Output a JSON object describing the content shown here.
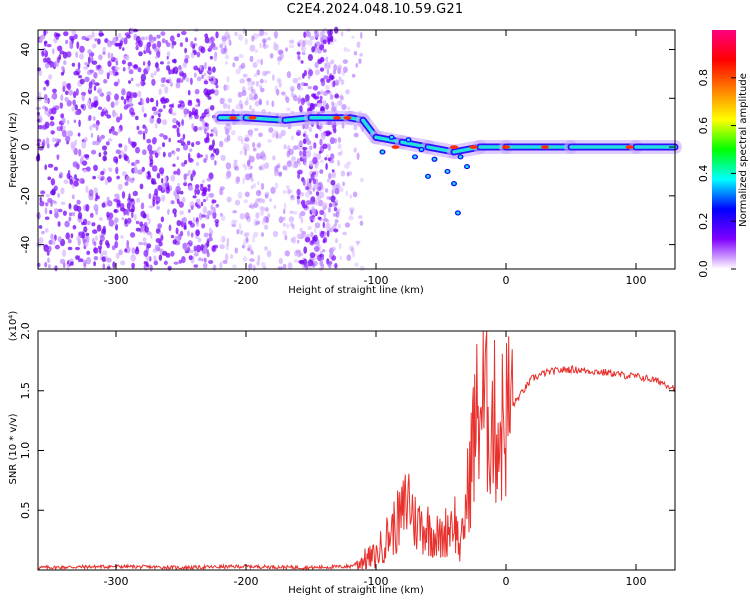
{
  "title": "C2E4.2024.048.10.59.G21",
  "chart_data": [
    {
      "type": "heatmap",
      "xlabel": "Height of straight line (km)",
      "ylabel": "Frequency (Hz)",
      "xlim": [
        -360,
        130
      ],
      "ylim": [
        -50,
        48
      ],
      "xticks": [
        -300,
        -200,
        -100,
        0,
        100
      ],
      "yticks": [
        -40,
        -20,
        0,
        20,
        40
      ],
      "colorbar": {
        "label": "Normalized spectral amplitude",
        "range": [
          0,
          1
        ],
        "ticks": [
          "0.0",
          "0.2",
          "0.4",
          "0.6",
          "0.8"
        ],
        "colors": [
          "#ffffff",
          "#8000ff",
          "#0000ff",
          "#00ffff",
          "#00ff00",
          "#ffff00",
          "#ff8000",
          "#ff0000",
          "#ff0080"
        ]
      },
      "signal_track": [
        {
          "x": -220,
          "y": 12
        },
        {
          "x": -200,
          "y": 12
        },
        {
          "x": -170,
          "y": 11
        },
        {
          "x": -150,
          "y": 12
        },
        {
          "x": -120,
          "y": 12
        },
        {
          "x": -110,
          "y": 11
        },
        {
          "x": -100,
          "y": 4
        },
        {
          "x": -80,
          "y": 2
        },
        {
          "x": -60,
          "y": 0
        },
        {
          "x": -40,
          "y": -2
        },
        {
          "x": -20,
          "y": 0
        },
        {
          "x": 0,
          "y": 0
        },
        {
          "x": 50,
          "y": 0
        },
        {
          "x": 100,
          "y": 0
        },
        {
          "x": 130,
          "y": 0
        }
      ]
    },
    {
      "type": "line",
      "xlabel": "Height of straight line (km)",
      "ylabel": "SNR (10 * v/v)",
      "y_multiplier": "(x10⁴)",
      "xlim": [
        -360,
        130
      ],
      "ylim": [
        0,
        2.0
      ],
      "xticks": [
        -300,
        -200,
        -100,
        0,
        100
      ],
      "yticks": [
        "0.5",
        "1.0",
        "1.5",
        "2.0"
      ],
      "color": "#e8302c",
      "series": [
        {
          "x": [
            -360,
            -300,
            -250,
            -200,
            -150,
            -120,
            -110,
            -100,
            -90,
            -80,
            -75,
            -70,
            -60,
            -50,
            -40,
            -35,
            -30,
            -25,
            -20,
            -15,
            -10,
            -5,
            0,
            10,
            20,
            30,
            40,
            50,
            60,
            70,
            80,
            90,
            100,
            110,
            120,
            130
          ],
          "values": [
            0.02,
            0.03,
            0.02,
            0.03,
            0.02,
            0.03,
            0.08,
            0.12,
            0.3,
            0.45,
            0.62,
            0.4,
            0.35,
            0.25,
            0.45,
            0.15,
            0.6,
            1.1,
            1.4,
            1.35,
            1.25,
            1.15,
            1.3,
            1.45,
            1.6,
            1.65,
            1.67,
            1.68,
            1.67,
            1.66,
            1.65,
            1.63,
            1.62,
            1.6,
            1.57,
            1.52
          ]
        }
      ]
    }
  ]
}
